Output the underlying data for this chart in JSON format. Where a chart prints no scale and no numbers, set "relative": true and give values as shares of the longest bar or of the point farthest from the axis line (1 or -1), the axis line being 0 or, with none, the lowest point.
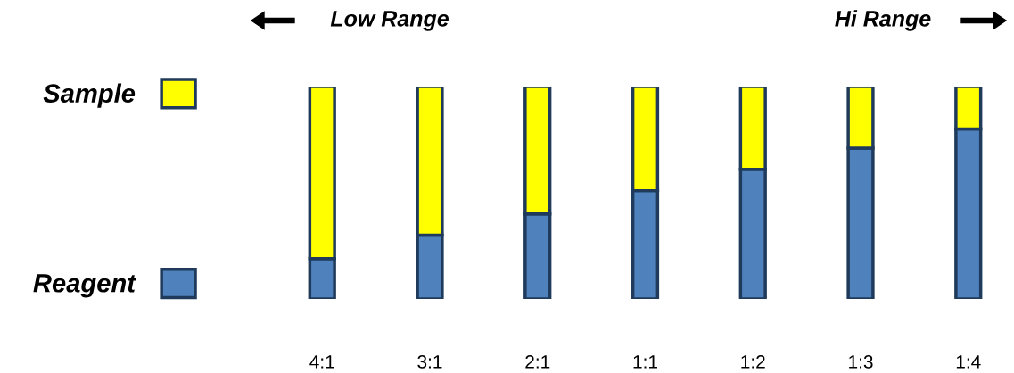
{
  "chart_data": {
    "type": "bar",
    "stacked": true,
    "relative": true,
    "legend": "left",
    "categories": [
      "4:1",
      "3:1",
      "2:1",
      "1:1",
      "1:2",
      "1:3",
      "1:4"
    ],
    "series": [
      {
        "name": "Reagent",
        "color": "#4f81bd",
        "values": [
          0.19,
          0.3,
          0.4,
          0.51,
          0.61,
          0.71,
          0.8
        ]
      },
      {
        "name": "Sample",
        "color": "#ffff00",
        "values": [
          0.81,
          0.7,
          0.6,
          0.49,
          0.39,
          0.29,
          0.2
        ]
      }
    ],
    "annotations": [
      "Low Range",
      "Hi Range"
    ]
  }
}
